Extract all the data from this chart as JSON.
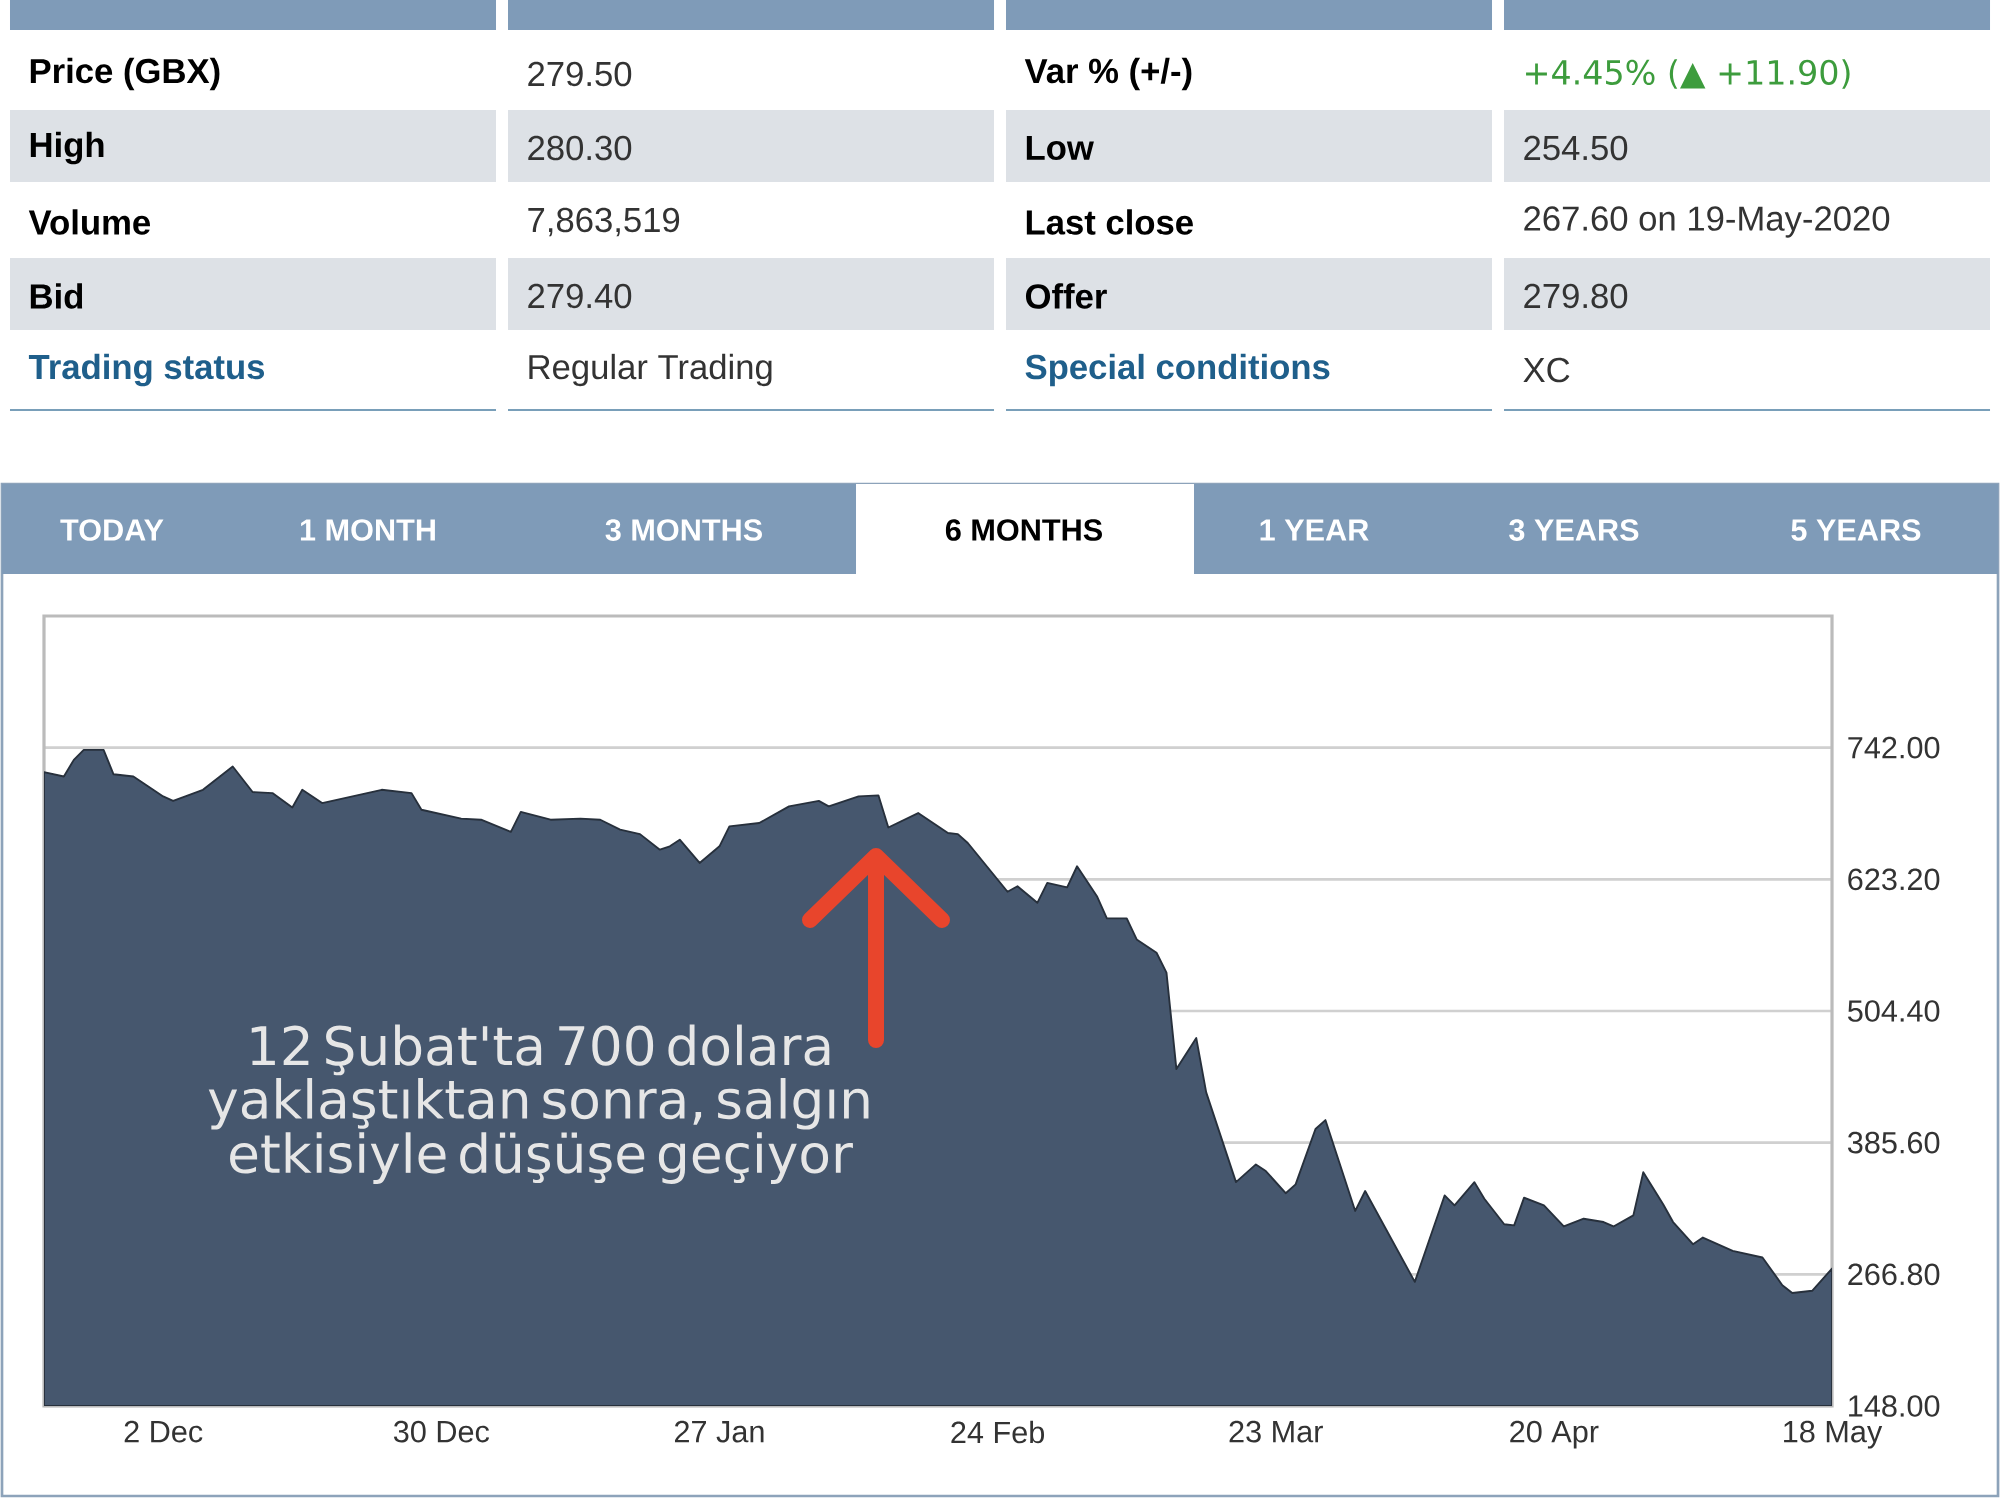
{
  "chart_data": [
    {
      "type": "other",
      "annotations": [
        "Price (GBX)",
        "279.50",
        "Var % (+/-)",
        "+4.45% (▲ +11.90)",
        "High",
        "280.30",
        "Low",
        "254.50",
        "Volume",
        "7,863,519",
        "Last close",
        "267.60 on 19-May-2020",
        "Bid",
        "279.40",
        "Offer",
        "279.80",
        "Trading status",
        "Regular Trading",
        "Special conditions",
        "XC"
      ]
    },
    {
      "type": "area",
      "color": "#46576e",
      "grid": "y",
      "xlim": [
        "2019-11-20",
        "2020-05-18"
      ],
      "ylim": [
        148,
        860.8
      ],
      "xticks": [
        {
          "value": "2019-12-02",
          "label": "2 Dec"
        },
        {
          "value": "2019-12-30",
          "label": "30 Dec"
        },
        {
          "value": "2020-01-27",
          "label": "27 Jan"
        },
        {
          "value": "2020-02-24",
          "label": "24 Feb"
        },
        {
          "value": "2020-03-23",
          "label": "23 Mar"
        },
        {
          "value": "2020-04-20",
          "label": "20 Apr"
        },
        {
          "value": "2020-05-18",
          "label": "18 May"
        }
      ],
      "yticks": [
        {
          "value": 148,
          "label": "148.00"
        },
        {
          "value": 266.8,
          "label": "266.80"
        },
        {
          "value": 385.6,
          "label": "385.60"
        },
        {
          "value": 504.4,
          "label": "504.40"
        },
        {
          "value": 623.2,
          "label": "623.20"
        },
        {
          "value": 742,
          "label": "742.00"
        }
      ],
      "x": [
        "2019-11-20",
        "2019-11-22",
        "2019-11-23",
        "2019-11-24",
        "2019-11-26",
        "2019-11-27",
        "2019-11-29",
        "2019-12-02",
        "2019-12-03",
        "2019-12-06",
        "2019-12-08",
        "2019-12-09",
        "2019-12-11",
        "2019-12-13",
        "2019-12-15",
        "2019-12-16",
        "2019-12-18",
        "2019-12-20",
        "2019-12-24",
        "2019-12-27",
        "2019-12-28",
        "2020-01-01",
        "2020-01-03",
        "2020-01-06",
        "2020-01-07",
        "2020-01-10",
        "2020-01-13",
        "2020-01-15",
        "2020-01-17",
        "2020-01-19",
        "2020-01-21",
        "2020-01-22",
        "2020-01-23",
        "2020-01-25",
        "2020-01-27",
        "2020-01-28",
        "2020-01-31",
        "2020-02-03",
        "2020-02-06",
        "2020-02-07",
        "2020-02-10",
        "2020-02-12",
        "2020-02-13",
        "2020-02-16",
        "2020-02-19",
        "2020-02-20",
        "2020-02-21",
        "2020-02-25",
        "2020-02-26",
        "2020-02-28",
        "2020-02-29",
        "2020-03-02",
        "2020-03-03",
        "2020-03-05",
        "2020-03-06",
        "2020-03-08",
        "2020-03-09",
        "2020-03-11",
        "2020-03-12",
        "2020-03-13",
        "2020-03-15",
        "2020-03-16",
        "2020-03-19",
        "2020-03-21",
        "2020-03-22",
        "2020-03-24",
        "2020-03-25",
        "2020-03-27",
        "2020-03-28",
        "2020-03-31",
        "2020-04-01",
        "2020-04-06",
        "2020-04-09",
        "2020-04-10",
        "2020-04-12",
        "2020-04-13",
        "2020-04-15",
        "2020-04-16",
        "2020-04-17",
        "2020-04-19",
        "2020-04-21",
        "2020-04-23",
        "2020-04-25",
        "2020-04-26",
        "2020-04-28",
        "2020-04-29",
        "2020-05-01",
        "2020-05-02",
        "2020-05-04",
        "2020-05-05",
        "2020-05-08",
        "2020-05-11",
        "2020-05-13",
        "2020-05-14",
        "2020-05-16",
        "2020-05-18"
      ],
      "values": [
        720,
        716,
        731,
        740,
        740,
        718,
        716,
        698,
        694,
        704,
        718,
        725,
        702,
        701,
        688,
        704,
        692,
        696,
        704,
        701,
        686,
        678,
        677,
        666,
        684,
        677,
        678,
        677,
        668,
        664,
        650,
        653,
        659,
        638,
        653,
        671,
        674,
        689,
        694,
        689,
        698,
        699,
        670,
        683,
        665,
        664,
        656,
        612,
        617,
        602,
        620,
        616,
        635,
        608,
        588,
        588,
        569,
        557,
        539,
        452,
        480,
        431,
        350,
        366,
        360,
        340,
        348,
        398,
        406,
        324,
        342,
        260,
        338,
        329,
        350,
        335,
        312,
        311,
        336,
        329,
        310,
        317,
        314,
        310,
        320,
        359,
        330,
        314,
        294,
        300,
        288,
        282,
        257,
        250,
        252,
        272
      ],
      "annotations": [
        "TODAY",
        "1 MONTH",
        "3 MONTHS",
        "6 MONTHS",
        "1 YEAR",
        "3 YEARS",
        "5 YEARS",
        "12 Şubat'ta 700 dolara yaklaştıktan sonra, salgın etkisiyle düşüşe geçiyor"
      ]
    }
  ]
}
